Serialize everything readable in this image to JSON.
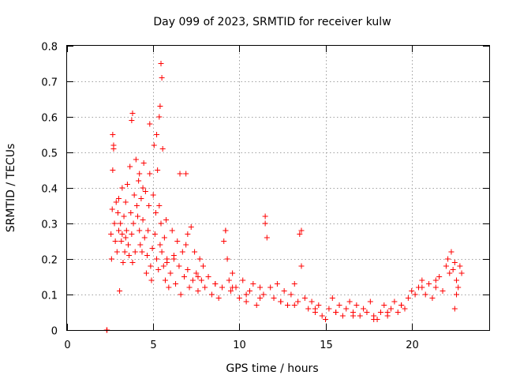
{
  "chart_data": {
    "type": "scatter",
    "title": "Day 099 of 2023, SRMTID for receiver kulw",
    "xlabel": "GPS time / hours",
    "ylabel": "SRMTID / TECUs",
    "xlim": [
      0,
      24.5
    ],
    "ylim": [
      0,
      0.8
    ],
    "xticks": [
      0,
      5,
      10,
      15,
      20
    ],
    "yticks": [
      0,
      0.1,
      0.2,
      0.3,
      0.4,
      0.5,
      0.6,
      0.7,
      0.8
    ],
    "xtick_labels": [
      "0",
      "5",
      "10",
      "15",
      "20"
    ],
    "ytick_labels": [
      "0",
      "0.1",
      "0.2",
      "0.3",
      "0.4",
      "0.5",
      "0.6",
      "0.7",
      "0.8"
    ],
    "grid": true,
    "marker": "plus",
    "color": "#ff0000",
    "series": [
      {
        "name": "SRMTID",
        "x": [
          2.3,
          2.32,
          2.55,
          2.58,
          2.62,
          2.65,
          2.7,
          2.75,
          2.8,
          2.85,
          2.9,
          2.95,
          3.0,
          3.05,
          3.1,
          3.15,
          3.2,
          3.25,
          3.3,
          3.35,
          3.4,
          3.45,
          3.5,
          3.55,
          3.6,
          3.65,
          3.7,
          3.75,
          3.8,
          3.85,
          3.9,
          3.95,
          4.0,
          4.05,
          4.1,
          4.15,
          4.2,
          4.25,
          4.3,
          4.35,
          4.4,
          4.45,
          4.5,
          4.55,
          4.6,
          4.65,
          4.7,
          4.75,
          4.8,
          4.85,
          4.9,
          4.95,
          5.0,
          5.05,
          5.1,
          5.15,
          5.2,
          5.25,
          5.3,
          5.35,
          5.4,
          5.45,
          5.5,
          5.55,
          5.6,
          5.65,
          5.7,
          5.75,
          5.8,
          5.9,
          6.0,
          6.1,
          6.2,
          6.3,
          6.4,
          6.5,
          6.6,
          6.7,
          6.8,
          6.9,
          7.0,
          7.1,
          7.2,
          7.3,
          7.4,
          7.5,
          7.6,
          7.7,
          7.8,
          7.9,
          8.0,
          8.2,
          8.4,
          8.6,
          8.8,
          9.0,
          9.1,
          9.2,
          9.3,
          9.4,
          9.5,
          9.6,
          9.8,
          10.0,
          10.2,
          10.4,
          10.6,
          10.8,
          11.0,
          11.2,
          11.4,
          11.5,
          11.6,
          11.8,
          12.0,
          12.2,
          12.4,
          12.6,
          12.8,
          13.0,
          13.2,
          13.4,
          13.5,
          13.6,
          13.8,
          14.0,
          14.2,
          14.4,
          14.6,
          14.8,
          15.0,
          15.2,
          15.4,
          15.6,
          15.8,
          16.0,
          16.2,
          16.4,
          16.6,
          16.8,
          17.0,
          17.2,
          17.4,
          17.6,
          17.8,
          18.0,
          18.2,
          18.4,
          18.6,
          18.8,
          19.0,
          19.2,
          19.4,
          19.6,
          19.8,
          20.0,
          20.2,
          20.4,
          20.6,
          20.8,
          21.0,
          21.2,
          21.4,
          21.6,
          21.8,
          22.0,
          22.1,
          22.2,
          22.3,
          22.4,
          22.5,
          22.6,
          22.7,
          22.8,
          22.9,
          5.45,
          5.5,
          5.4,
          3.8,
          3.75,
          4.8,
          5.2,
          5.35,
          2.65,
          2.7,
          6.55,
          6.9,
          9.2,
          11.5,
          13.6,
          3.0,
          3.2,
          3.4,
          4.2,
          4.4,
          5.8,
          6.2,
          7.0,
          7.6,
          8.6,
          9.6,
          10.4,
          11.2,
          12.4,
          13.2,
          14.4,
          15.6,
          16.6,
          17.8,
          18.6,
          19.4,
          20.6,
          21.4,
          22.5,
          22.6
        ],
        "y": [
          0.0,
          0.0,
          0.27,
          0.2,
          0.34,
          0.45,
          0.52,
          0.3,
          0.25,
          0.36,
          0.22,
          0.33,
          0.28,
          0.11,
          0.3,
          0.25,
          0.27,
          0.19,
          0.32,
          0.22,
          0.36,
          0.28,
          0.41,
          0.24,
          0.21,
          0.46,
          0.33,
          0.27,
          0.19,
          0.3,
          0.38,
          0.22,
          0.48,
          0.35,
          0.32,
          0.42,
          0.28,
          0.24,
          0.37,
          0.22,
          0.31,
          0.47,
          0.26,
          0.39,
          0.16,
          0.21,
          0.28,
          0.35,
          0.44,
          0.18,
          0.14,
          0.23,
          0.38,
          0.52,
          0.27,
          0.33,
          0.2,
          0.45,
          0.17,
          0.35,
          0.24,
          0.3,
          0.22,
          0.51,
          0.18,
          0.26,
          0.14,
          0.31,
          0.2,
          0.12,
          0.16,
          0.28,
          0.2,
          0.13,
          0.25,
          0.18,
          0.1,
          0.22,
          0.15,
          0.24,
          0.17,
          0.12,
          0.29,
          0.14,
          0.22,
          0.16,
          0.11,
          0.2,
          0.14,
          0.18,
          0.12,
          0.15,
          0.1,
          0.13,
          0.09,
          0.12,
          0.25,
          0.28,
          0.2,
          0.14,
          0.11,
          0.16,
          0.12,
          0.09,
          0.14,
          0.08,
          0.11,
          0.13,
          0.07,
          0.12,
          0.1,
          0.3,
          0.26,
          0.12,
          0.09,
          0.13,
          0.08,
          0.11,
          0.07,
          0.1,
          0.13,
          0.08,
          0.27,
          0.18,
          0.09,
          0.06,
          0.08,
          0.05,
          0.07,
          0.04,
          0.03,
          0.06,
          0.09,
          0.05,
          0.07,
          0.04,
          0.06,
          0.08,
          0.05,
          0.07,
          0.04,
          0.06,
          0.05,
          0.08,
          0.04,
          0.03,
          0.05,
          0.07,
          0.04,
          0.06,
          0.08,
          0.05,
          0.07,
          0.06,
          0.09,
          0.11,
          0.1,
          0.12,
          0.14,
          0.1,
          0.13,
          0.09,
          0.12,
          0.15,
          0.11,
          0.18,
          0.2,
          0.16,
          0.22,
          0.17,
          0.19,
          0.14,
          0.12,
          0.18,
          0.16,
          0.75,
          0.71,
          0.63,
          0.61,
          0.59,
          0.58,
          0.55,
          0.6,
          0.55,
          0.51,
          0.44,
          0.44,
          0.28,
          0.32,
          0.28,
          0.37,
          0.4,
          0.26,
          0.44,
          0.4,
          0.19,
          0.21,
          0.27,
          0.15,
          0.13,
          0.12,
          0.1,
          0.09,
          0.08,
          0.07,
          0.06,
          0.05,
          0.04,
          0.03,
          0.05,
          0.07,
          0.12,
          0.14,
          0.06,
          0.1
        ]
      }
    ]
  }
}
